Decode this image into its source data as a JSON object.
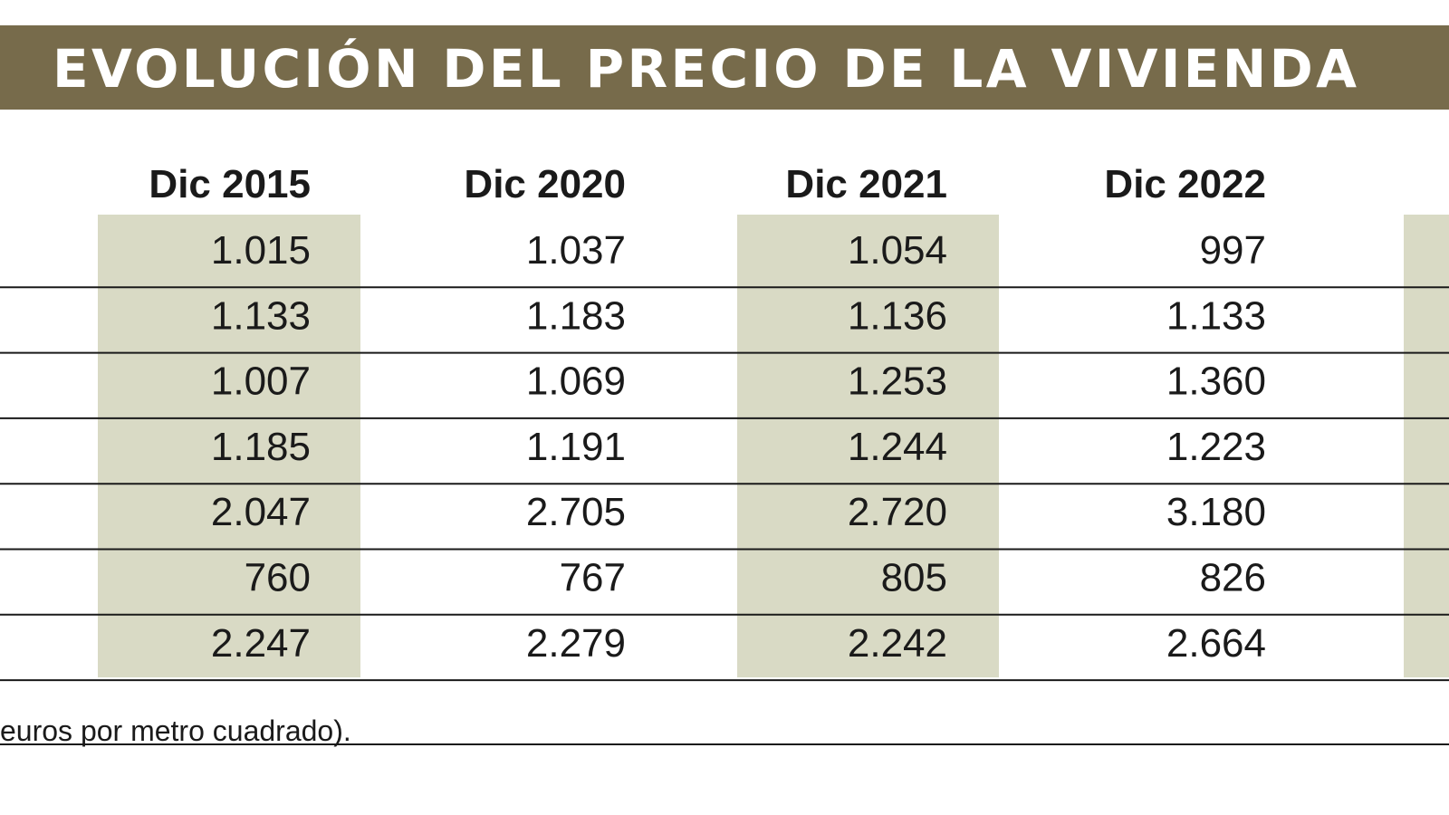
{
  "title": "EVOLUCIÓN DEL PRECIO DE LA VIVIENDA",
  "table": {
    "columns": [
      "Dic 2015",
      "Dic 2020",
      "Dic 2021",
      "Dic 2022"
    ],
    "rows": [
      [
        "1.015",
        "1.037",
        "1.054",
        "997"
      ],
      [
        "1.133",
        "1.183",
        "1.136",
        "1.133"
      ],
      [
        "1.007",
        "1.069",
        "1.253",
        "1.360"
      ],
      [
        "1.185",
        "1.191",
        "1.244",
        "1.223"
      ],
      [
        "2.047",
        "2.705",
        "2.720",
        "3.180"
      ],
      [
        "760",
        "767",
        "805",
        "826"
      ],
      [
        "2.247",
        "2.279",
        "2.242",
        "2.664"
      ]
    ]
  },
  "footnote": "euros por metro cuadrado)."
}
